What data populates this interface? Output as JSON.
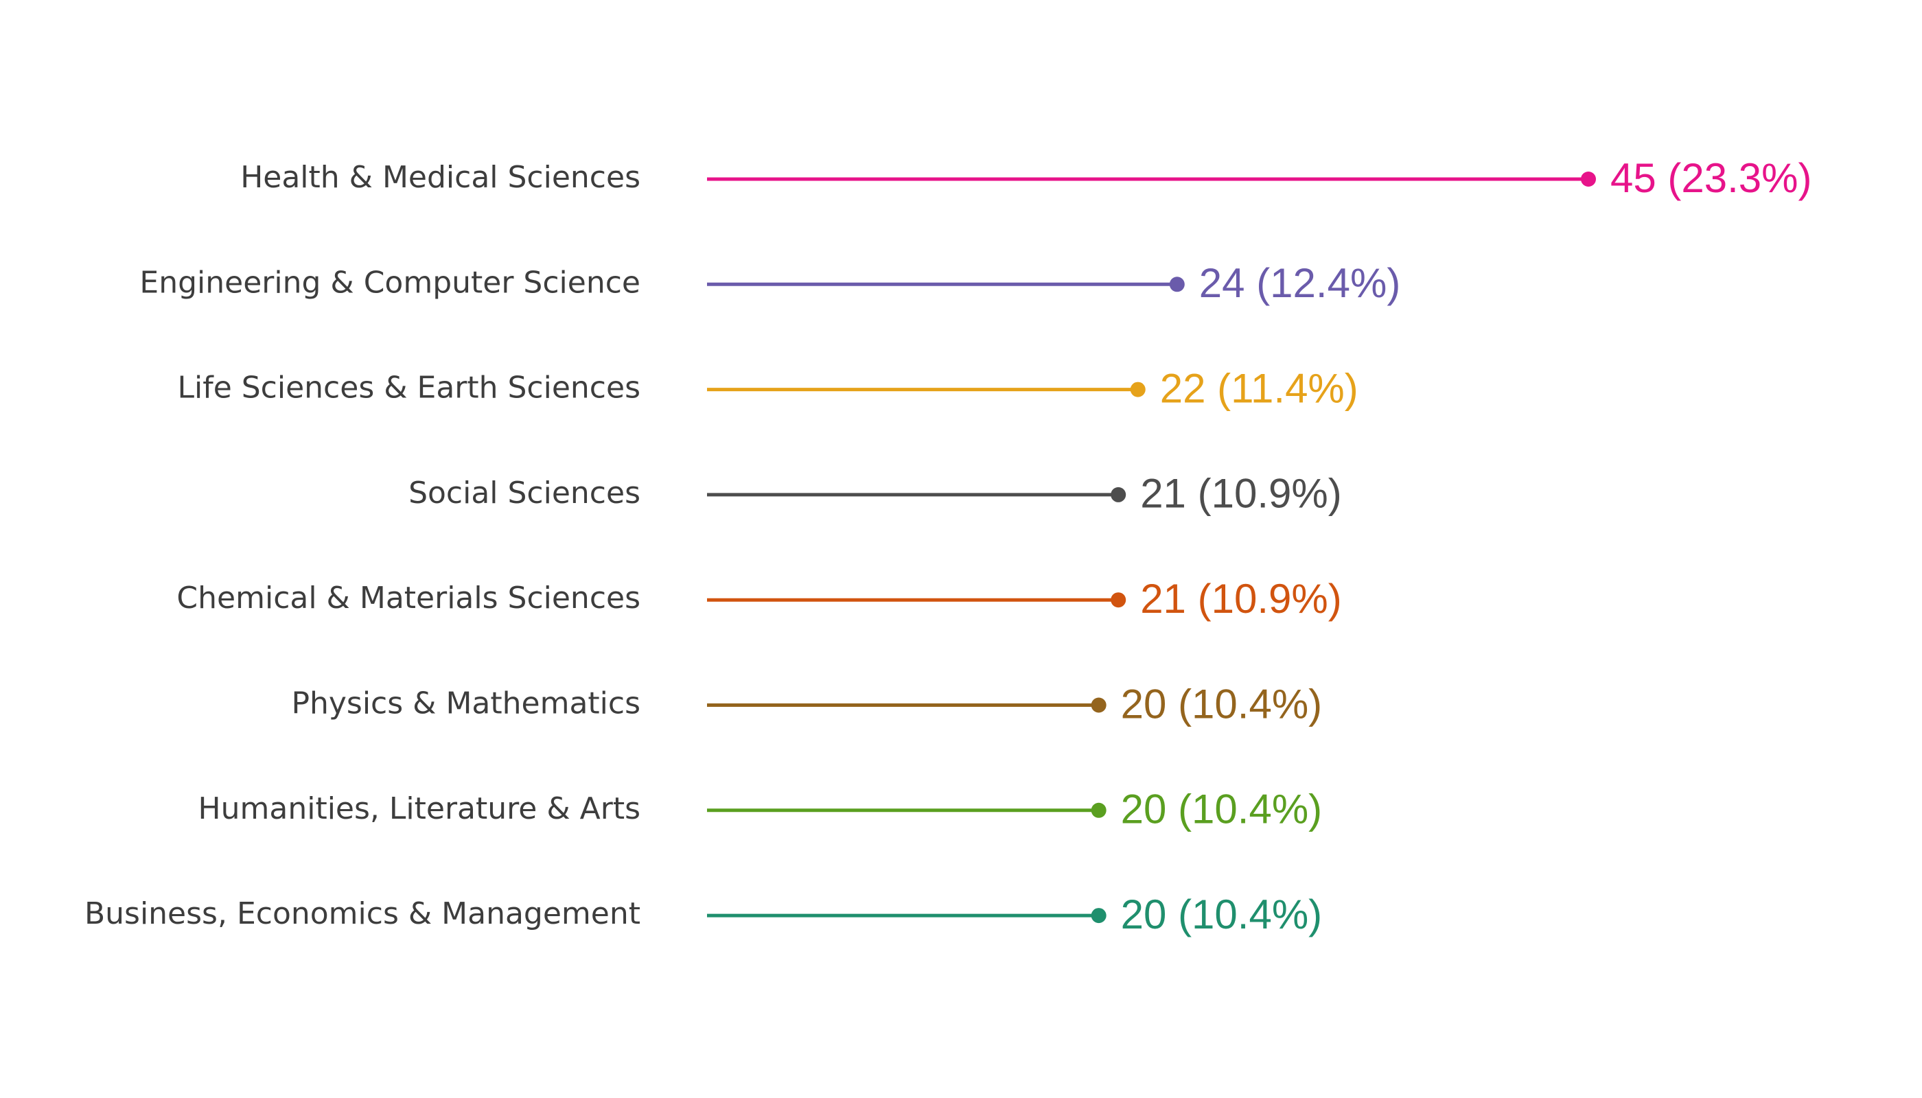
{
  "chart_data": {
    "type": "lollipop",
    "orientation": "horizontal",
    "categories": [
      "Health & Medical Sciences",
      "Engineering & Computer Science",
      "Life Sciences & Earth Sciences",
      "Social Sciences",
      "Chemical & Materials Sciences",
      "Physics & Mathematics",
      "Humanities, Literature & Arts",
      "Business, Economics & Management"
    ],
    "values": [
      45,
      24,
      22,
      21,
      21,
      20,
      20,
      20
    ],
    "percent_labels": [
      "23.3%",
      "12.4%",
      "11.4%",
      "10.9%",
      "10.9%",
      "10.4%",
      "10.4%",
      "10.4%"
    ],
    "value_labels": [
      "45 (23.3%)",
      "24 (12.4%)",
      "22 (11.4%)",
      "21 (10.9%)",
      "21 (10.9%)",
      "20 (10.4%)",
      "20 (10.4%)",
      "20 (10.4%)"
    ],
    "colors": [
      "#e7138a",
      "#6a5bab",
      "#e6a21a",
      "#4d4d4d",
      "#d1540f",
      "#94641d",
      "#5a9f20",
      "#1f8f6d"
    ],
    "xlim": [
      0,
      45
    ],
    "title": "",
    "xlabel": "",
    "ylabel": "",
    "grid": false,
    "legend": "none"
  }
}
